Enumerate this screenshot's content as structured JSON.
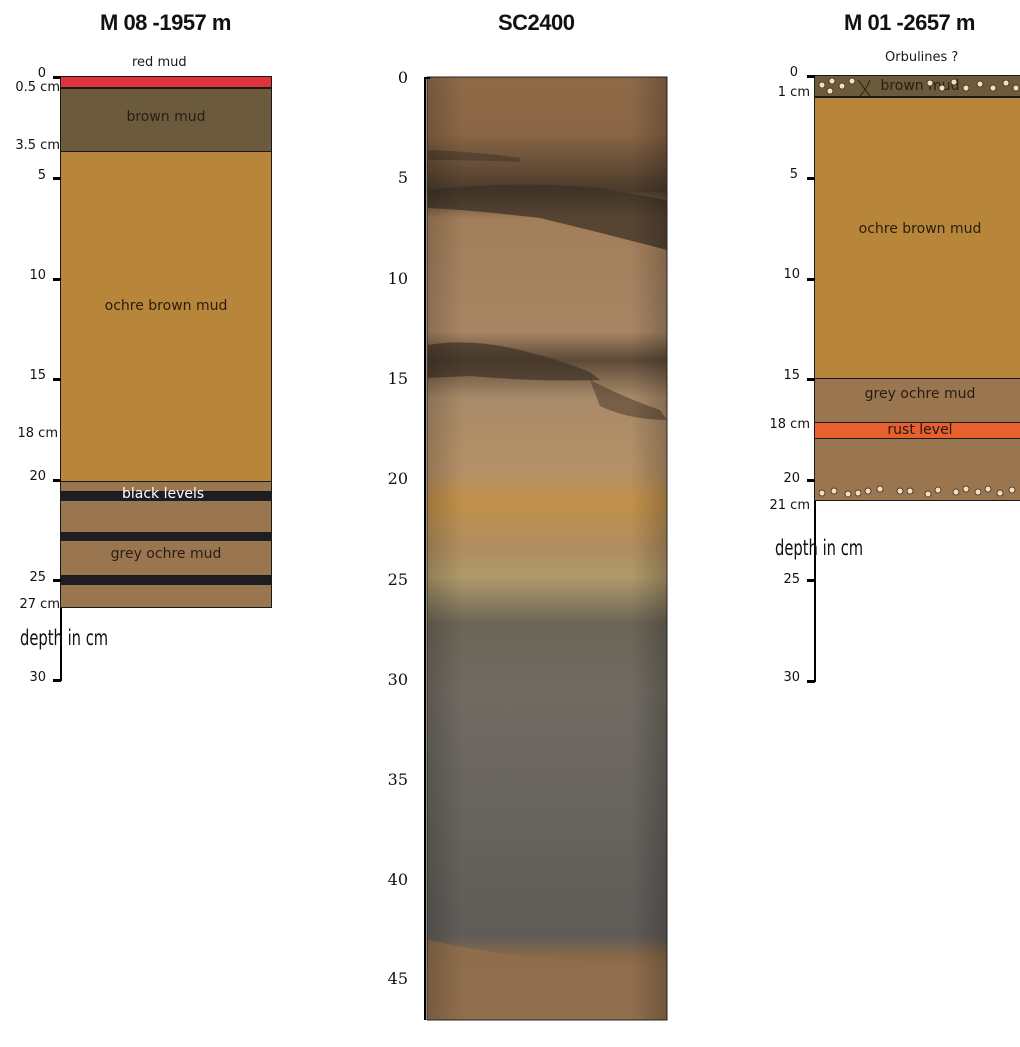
{
  "titles": {
    "left": "M 08 -1957 m",
    "middle": "SC2400",
    "right": "M 01 -2657 m"
  },
  "left_log": {
    "top_label": "red mud",
    "axis_label": "depth in cm",
    "ticks": [
      "0",
      "5",
      "10",
      "15",
      "20",
      "25",
      "30"
    ],
    "boundary_labels": [
      "0.5 cm",
      "3.5 cm",
      "18 cm",
      "27 cm"
    ],
    "layers": [
      {
        "name": "red-mud",
        "label": "",
        "color": "#e0323c"
      },
      {
        "name": "brown-mud",
        "label": "brown mud",
        "color": "#6b5a3c"
      },
      {
        "name": "ochre-brown-mud",
        "label": "ochre brown mud",
        "color": "#b8863a"
      },
      {
        "name": "grey-ochre-upper",
        "label": "",
        "color": "#9a7650"
      },
      {
        "name": "black-level-1",
        "label": "black levels",
        "color": "#1e1e22"
      },
      {
        "name": "grey-ochre-mid",
        "label": "",
        "color": "#9a7650"
      },
      {
        "name": "black-level-2",
        "label": "",
        "color": "#1e1e22"
      },
      {
        "name": "grey-ochre-mud",
        "label": "grey ochre mud",
        "color": "#9a7650"
      },
      {
        "name": "black-level-3",
        "label": "",
        "color": "#1e1e22"
      },
      {
        "name": "grey-ochre-bottom",
        "label": "",
        "color": "#9a7650"
      }
    ]
  },
  "core_photo": {
    "ticks": [
      "0",
      "5",
      "10",
      "15",
      "20",
      "25",
      "30",
      "35",
      "40",
      "45"
    ]
  },
  "right_log": {
    "top_label": "Orbulines ?",
    "axis_label": "depth in cm",
    "ticks": [
      "0",
      "5",
      "10",
      "15",
      "20",
      "25",
      "30"
    ],
    "boundary_labels": [
      "1 cm",
      "18 cm",
      "21 cm"
    ],
    "layers": [
      {
        "name": "brown-mud",
        "label": "brown mud",
        "color": "#6b5a3c"
      },
      {
        "name": "ochre-brown-mud",
        "label": "ochre brown mud",
        "color": "#b8863a"
      },
      {
        "name": "grey-ochre-mud",
        "label": "grey ochre mud",
        "color": "#9a7650"
      },
      {
        "name": "rust-level",
        "label": "rust level",
        "color": "#e8602c"
      },
      {
        "name": "lower-mud",
        "label": "",
        "color": "#9a7650"
      }
    ]
  }
}
